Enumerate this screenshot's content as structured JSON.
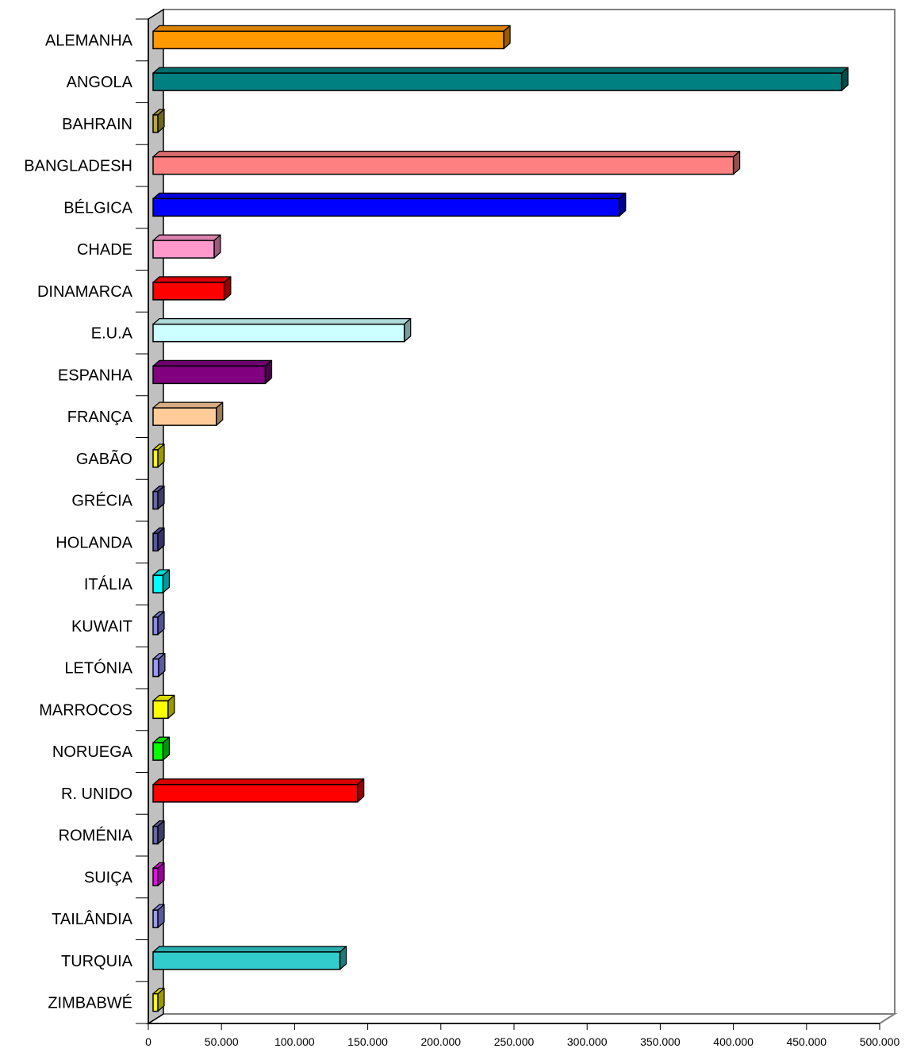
{
  "chart_data": {
    "type": "bar",
    "orientation": "horizontal",
    "style": "3d",
    "categories": [
      "ALEMANHA",
      "ANGOLA",
      "BAHRAIN",
      "BANGLADESH",
      "BÉLGICA",
      "CHADE",
      "DINAMARCA",
      "E.U.A",
      "ESPANHA",
      "FRANÇA",
      "GABÃO",
      "GRÉCIA",
      "HOLANDA",
      "ITÁLIA",
      "KUWAIT",
      "LETÓNIA",
      "MARROCOS",
      "NORUEGA",
      "R. UNIDO",
      "ROMÉNIA",
      "SUIÇA",
      "TAILÂNDIA",
      "TURQUIA",
      "ZIMBABWÉ"
    ],
    "values": [
      243000,
      474000,
      2500,
      400000,
      322000,
      45000,
      52000,
      175000,
      80000,
      46500,
      4000,
      2000,
      1000,
      10000,
      3500,
      7000,
      13500,
      10000,
      143000,
      2500,
      6000,
      3500,
      131000,
      6000
    ],
    "colors": [
      "#FF9900",
      "#008080",
      "#B9A830",
      "#FF8080",
      "#0000FF",
      "#FF99CC",
      "#FF0000",
      "#CCFFFF",
      "#800080",
      "#FFCC99",
      "#FFFF00",
      "#6666AA",
      "#5555AA",
      "#00FFFF",
      "#8888EE",
      "#9999FF",
      "#FFFF00",
      "#00FF00",
      "#FF0000",
      "#6666AA",
      "#FF00FF",
      "#9999FF",
      "#33CCCC",
      "#FFFF00"
    ],
    "xlim": [
      0,
      500000
    ],
    "xticks": [
      0,
      50000,
      100000,
      150000,
      200000,
      250000,
      300000,
      350000,
      400000,
      450000,
      500000
    ],
    "xtick_labels": [
      "0",
      "50.000",
      "100.000",
      "150.000",
      "200.000",
      "250.000",
      "300.000",
      "350.000",
      "400.000",
      "450.000",
      "500.000"
    ],
    "title": "",
    "xlabel": "",
    "ylabel": "",
    "legend": false,
    "grid": false
  }
}
